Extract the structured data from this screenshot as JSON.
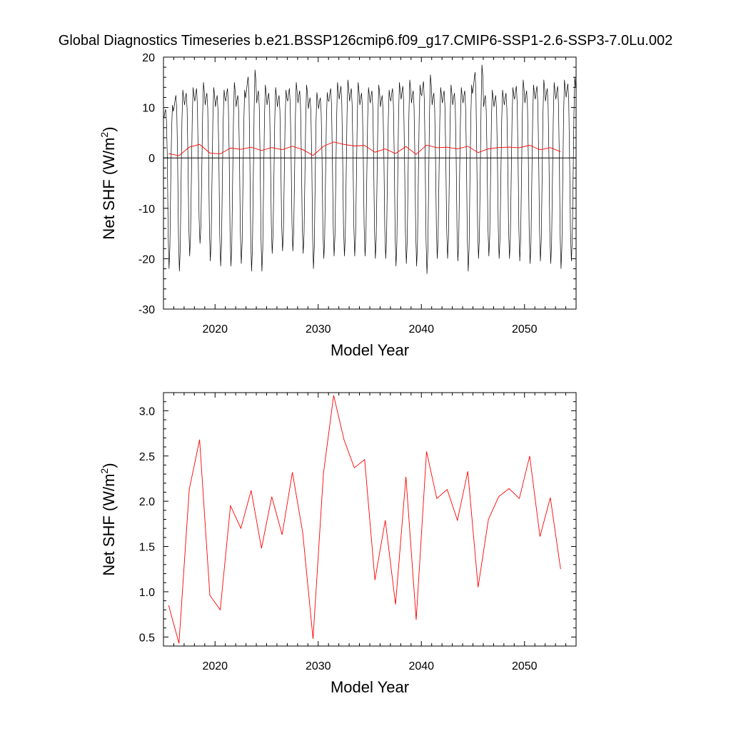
{
  "title": "Global Diagnostics Timeseries b.e21.BSSP126cmip6.f09_g17.CMIP6-SSP1-2.6-SSP3-7.0Lu.002",
  "colors": {
    "monthly": "#000000",
    "annual": "#ff0000",
    "zero_line": "#000000"
  },
  "chart_data": [
    {
      "type": "line",
      "xlabel": "Model Year",
      "ylabel": "Net SHF (W/m²)",
      "xlim": [
        2015,
        2055
      ],
      "ylim": [
        -30,
        20
      ],
      "xticks": [
        2020,
        2030,
        2040,
        2050
      ],
      "xtick_labels": [
        "2020",
        "2030",
        "2040",
        "2050"
      ],
      "yticks": [
        -30,
        -20,
        -10,
        0,
        10,
        20
      ],
      "ytick_labels": [
        "-30",
        "-20",
        "-10",
        "0",
        "10",
        "20"
      ],
      "reference_line_y": 0,
      "series": [
        {
          "color": "#000000",
          "description_of_cycle": "monthly seasonal cycle",
          "x_start": 2015.04,
          "x_step": 0.08333,
          "year_maxima": [
            10.5,
            13.5,
            14.0,
            15.0,
            14.0,
            13.5,
            15.0,
            13.5,
            17.5,
            14.5,
            14.0,
            13.5,
            15.0,
            14.5,
            13.0,
            13.0,
            15.0,
            15.5,
            15.0,
            14.0,
            14.5,
            13.5,
            15.0,
            15.5,
            14.5,
            16.5,
            14.0,
            14.5,
            14.0,
            14.5,
            18.5,
            13.5,
            13.5,
            14.0,
            15.5,
            14.5,
            15.5,
            15.0,
            15.5,
            16.0
          ],
          "year_minima": [
            -22.0,
            -22.5,
            -19.5,
            -17.0,
            -20.5,
            -21.5,
            -21.5,
            -21.0,
            -22.5,
            -22.5,
            -19.0,
            -18.5,
            -18.5,
            -19.0,
            -22.0,
            -20.0,
            -19.5,
            -19.5,
            -19.5,
            -19.5,
            -20.0,
            -20.0,
            -21.5,
            -21.0,
            -21.5,
            -23.0,
            -20.0,
            -20.0,
            -20.5,
            -22.5,
            -20.0,
            -19.5,
            -20.0,
            -20.0,
            -20.5,
            -21.0,
            -20.5,
            -21.0,
            -22.0,
            -20.5
          ]
        },
        {
          "color": "#ff0000",
          "description_of_cycle": "annual mean",
          "x": [
            2015.5,
            2016.5,
            2017.5,
            2018.5,
            2019.5,
            2020.5,
            2021.5,
            2022.5,
            2023.5,
            2024.5,
            2025.5,
            2026.5,
            2027.5,
            2028.5,
            2029.5,
            2030.5,
            2031.5,
            2032.5,
            2033.5,
            2034.5,
            2035.5,
            2036.5,
            2037.5,
            2038.5,
            2039.5,
            2040.5,
            2041.5,
            2042.5,
            2043.5,
            2044.5,
            2045.5,
            2046.5,
            2047.5,
            2048.5,
            2049.5,
            2050.5,
            2051.5,
            2052.5,
            2053.5
          ],
          "values": [
            0.85,
            0.43,
            2.13,
            2.68,
            0.96,
            0.8,
            1.95,
            1.7,
            2.12,
            1.48,
            2.05,
            1.63,
            2.32,
            1.65,
            0.48,
            2.3,
            3.17,
            2.68,
            2.37,
            2.46,
            1.13,
            1.79,
            0.86,
            2.27,
            0.69,
            2.55,
            2.03,
            2.13,
            1.79,
            2.33,
            1.05,
            1.8,
            2.05,
            2.14,
            2.03,
            2.5,
            1.61,
            2.04,
            1.25
          ]
        }
      ]
    },
    {
      "type": "line",
      "xlabel": "Model Year",
      "ylabel": "Net SHF (W/m²)",
      "xlim": [
        2015,
        2055
      ],
      "ylim": [
        0.4,
        3.2
      ],
      "xticks": [
        2020,
        2030,
        2040,
        2050
      ],
      "xtick_labels": [
        "2020",
        "2030",
        "2040",
        "2050"
      ],
      "yticks": [
        0.5,
        1.0,
        1.5,
        2.0,
        2.5,
        3.0
      ],
      "ytick_labels": [
        "0.5",
        "1.0",
        "1.5",
        "2.0",
        "2.5",
        "3.0"
      ],
      "series": [
        {
          "color": "#ff0000",
          "x": [
            2015.5,
            2016.5,
            2017.5,
            2018.5,
            2019.5,
            2020.5,
            2021.5,
            2022.5,
            2023.5,
            2024.5,
            2025.5,
            2026.5,
            2027.5,
            2028.5,
            2029.5,
            2030.5,
            2031.5,
            2032.5,
            2033.5,
            2034.5,
            2035.5,
            2036.5,
            2037.5,
            2038.5,
            2039.5,
            2040.5,
            2041.5,
            2042.5,
            2043.5,
            2044.5,
            2045.5,
            2046.5,
            2047.5,
            2048.5,
            2049.5,
            2050.5,
            2051.5,
            2052.5,
            2053.5
          ],
          "values": [
            0.85,
            0.43,
            2.13,
            2.68,
            0.96,
            0.8,
            1.95,
            1.7,
            2.12,
            1.48,
            2.05,
            1.63,
            2.32,
            1.65,
            0.48,
            2.3,
            3.17,
            2.68,
            2.37,
            2.46,
            1.13,
            1.79,
            0.86,
            2.27,
            0.69,
            2.55,
            2.03,
            2.13,
            1.79,
            2.33,
            1.05,
            1.8,
            2.05,
            2.14,
            2.03,
            2.5,
            1.61,
            2.04,
            1.25
          ]
        }
      ]
    }
  ]
}
